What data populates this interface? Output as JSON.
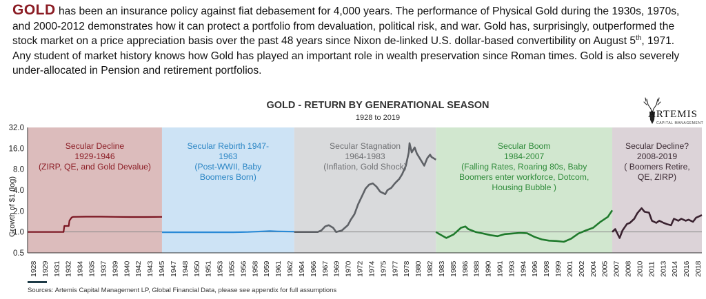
{
  "intro": {
    "lead": "GOLD",
    "line1": " has been an insurance policy against fiat debasement for 4,000 years. The performance of Physical Gold during the 1930s, 1970s, and 2000-2012 demonstrates how it can protect a portfolio from devaluation, political risk, and war. Gold has, surprisingly, outperformed the stock market on a price appreciation basis over the past 48 years since Nixon de-linked U.S. dollar-based convertibility on August 5",
    "sup": "th",
    "line2": ", 1971. Any student of market history knows how Gold has played an important role in wealth preservation since Roman times. Gold is also severely under-allocated in Pension and retirement portfolios."
  },
  "logo": {
    "name": "ARTEMIS",
    "sub": "CAPITAL MANAGEMENT",
    "icon": "stag-head-icon"
  },
  "sources": "Sources: Artemis Capital Management LP, Global Financial Data, please see appendix for full assumptions",
  "chart_data": {
    "type": "line",
    "title": "GOLD - RETURN BY GENERATIONAL SEASON",
    "subtitle": "1928 to 2019",
    "ylabel": "Growth of $1 (log)",
    "xlabel": "",
    "yscale": "log",
    "ylim": [
      0.5,
      32
    ],
    "yticks": [
      "0.5",
      "1.0",
      "2.0",
      "4.0",
      "8.0",
      "16.0",
      "32.0"
    ],
    "ytick_values": [
      0.5,
      1,
      2,
      4,
      8,
      16,
      32
    ],
    "xlim": [
      1928,
      2019.8
    ],
    "xticks": [
      1928,
      1929,
      1931,
      1932,
      1934,
      1935,
      1937,
      1939,
      1940,
      1942,
      1943,
      1945,
      1947,
      1948,
      1950,
      1951,
      1953,
      1955,
      1956,
      1958,
      1959,
      1961,
      1962,
      1964,
      1966,
      1967,
      1969,
      1970,
      1972,
      1974,
      1975,
      1977,
      1978,
      1980,
      1982,
      1983,
      1985,
      1986,
      1988,
      1990,
      1991,
      1993,
      1994,
      1996,
      1998,
      1999,
      2001,
      2002,
      2004,
      2005,
      2007,
      2008,
      2010,
      2011,
      2013,
      2014,
      2016,
      2018
    ],
    "grid": false,
    "reference_line": 1.0,
    "seasons": [
      {
        "label": "Secular Decline\n1929-1946\n(ZIRP, QE, and Gold Devalue)",
        "start": 1928,
        "end": 1946.3,
        "fill": "#dcbcbc",
        "text_color": "#8b1c24",
        "values": [
          [
            1928,
            1.0
          ],
          [
            1929,
            1.0
          ],
          [
            1930,
            1.0
          ],
          [
            1931,
            1.0
          ],
          [
            1932,
            1.0
          ],
          [
            1932.9,
            1.0
          ],
          [
            1933,
            1.22
          ],
          [
            1933.6,
            1.22
          ],
          [
            1933.7,
            1.45
          ],
          [
            1934,
            1.62
          ],
          [
            1934.2,
            1.65
          ],
          [
            1936,
            1.66
          ],
          [
            1938,
            1.66
          ],
          [
            1940,
            1.65
          ],
          [
            1942,
            1.64
          ],
          [
            1944,
            1.64
          ],
          [
            1946.3,
            1.65
          ]
        ]
      },
      {
        "label": "Secular Rebirth 1947-\n1963\n(Post-WWII, Baby\nBoomers Born)",
        "start": 1946.3,
        "end": 1964.3,
        "fill": "#cde3f5",
        "text_color": "#2a85c4",
        "values": [
          [
            1946.3,
            0.99
          ],
          [
            1948,
            0.99
          ],
          [
            1950,
            0.99
          ],
          [
            1952,
            0.99
          ],
          [
            1954,
            0.99
          ],
          [
            1956,
            0.99
          ],
          [
            1958,
            1.0
          ],
          [
            1960,
            1.02
          ],
          [
            1961,
            1.03
          ],
          [
            1962,
            1.02
          ],
          [
            1964.3,
            1.01
          ]
        ]
      },
      {
        "label": "Secular Stagnation\n1964-1983\n(Inflation, Gold Shock)",
        "start": 1964.3,
        "end": 1983.6,
        "fill": "#d9dadc",
        "text_color": "#6e6f72",
        "values": [
          [
            1964.3,
            1.0
          ],
          [
            1966,
            1.0
          ],
          [
            1967.5,
            1.0
          ],
          [
            1968,
            1.05
          ],
          [
            1968.5,
            1.2
          ],
          [
            1969,
            1.25
          ],
          [
            1969.6,
            1.15
          ],
          [
            1970,
            1.0
          ],
          [
            1970.8,
            1.05
          ],
          [
            1971,
            1.1
          ],
          [
            1971.6,
            1.25
          ],
          [
            1972,
            1.5
          ],
          [
            1972.5,
            1.8
          ],
          [
            1973,
            2.5
          ],
          [
            1973.6,
            3.4
          ],
          [
            1974,
            4.2
          ],
          [
            1974.5,
            4.8
          ],
          [
            1975,
            5.0
          ],
          [
            1975.5,
            4.5
          ],
          [
            1976,
            3.8
          ],
          [
            1976.7,
            3.5
          ],
          [
            1977,
            4.0
          ],
          [
            1977.5,
            4.3
          ],
          [
            1978,
            5.0
          ],
          [
            1978.6,
            5.8
          ],
          [
            1979,
            6.8
          ],
          [
            1979.5,
            9.0
          ],
          [
            1979.9,
            14.0
          ],
          [
            1980,
            19.0
          ],
          [
            1980.3,
            14.0
          ],
          [
            1980.7,
            16.5
          ],
          [
            1981,
            13.5
          ],
          [
            1981.5,
            11.0
          ],
          [
            1982,
            9.0
          ],
          [
            1982.4,
            11.5
          ],
          [
            1982.8,
            13.0
          ],
          [
            1983,
            12.0
          ],
          [
            1983.6,
            11.0
          ]
        ]
      },
      {
        "label": "Secular Boom\n1984-2007\n(Falling Rates, Roaring 80s, Baby\nBoomers enter workforce, Dotcom,\nHousing Bubble )",
        "start": 1983.6,
        "end": 2007.6,
        "fill": "#d1e7cf",
        "text_color": "#2f8b3a",
        "values": [
          [
            1983.6,
            1.0
          ],
          [
            1984,
            0.94
          ],
          [
            1985,
            0.82
          ],
          [
            1986,
            0.92
          ],
          [
            1987,
            1.15
          ],
          [
            1987.6,
            1.2
          ],
          [
            1988,
            1.1
          ],
          [
            1989,
            1.0
          ],
          [
            1990,
            0.95
          ],
          [
            1991,
            0.9
          ],
          [
            1992,
            0.87
          ],
          [
            1993,
            0.93
          ],
          [
            1994,
            0.95
          ],
          [
            1995,
            0.97
          ],
          [
            1996,
            0.96
          ],
          [
            1997,
            0.85
          ],
          [
            1998,
            0.78
          ],
          [
            1999,
            0.75
          ],
          [
            2000,
            0.74
          ],
          [
            2001,
            0.72
          ],
          [
            2002,
            0.8
          ],
          [
            2003,
            0.95
          ],
          [
            2004,
            1.05
          ],
          [
            2005,
            1.15
          ],
          [
            2006,
            1.4
          ],
          [
            2007,
            1.65
          ],
          [
            2007.6,
            2.05
          ]
        ]
      },
      {
        "label": "Secular Decline?\n2008-2019\n( Boomers Retire,\nQE, ZIRP)",
        "start": 2007.6,
        "end": 2019.8,
        "fill": "#dcd3d8",
        "text_color": "#3b2a33",
        "values": [
          [
            2007.6,
            1.0
          ],
          [
            2008,
            1.1
          ],
          [
            2008.6,
            0.82
          ],
          [
            2009,
            1.05
          ],
          [
            2009.6,
            1.3
          ],
          [
            2010,
            1.35
          ],
          [
            2010.6,
            1.55
          ],
          [
            2011,
            1.85
          ],
          [
            2011.6,
            2.2
          ],
          [
            2012,
            1.95
          ],
          [
            2012.6,
            1.9
          ],
          [
            2013,
            1.45
          ],
          [
            2013.6,
            1.35
          ],
          [
            2014,
            1.45
          ],
          [
            2014.6,
            1.35
          ],
          [
            2015,
            1.3
          ],
          [
            2015.6,
            1.25
          ],
          [
            2016,
            1.55
          ],
          [
            2016.6,
            1.45
          ],
          [
            2017,
            1.55
          ],
          [
            2017.6,
            1.45
          ],
          [
            2018,
            1.5
          ],
          [
            2018.6,
            1.4
          ],
          [
            2019,
            1.6
          ],
          [
            2019.8,
            1.75
          ]
        ]
      }
    ],
    "colors": {
      "series": [
        "#7a1420",
        "#2a8ad6",
        "#5e6166",
        "#1f7a2c",
        "#3a2230"
      ],
      "axis": "#333333",
      "reference": "#888888",
      "title": "#333333"
    }
  }
}
